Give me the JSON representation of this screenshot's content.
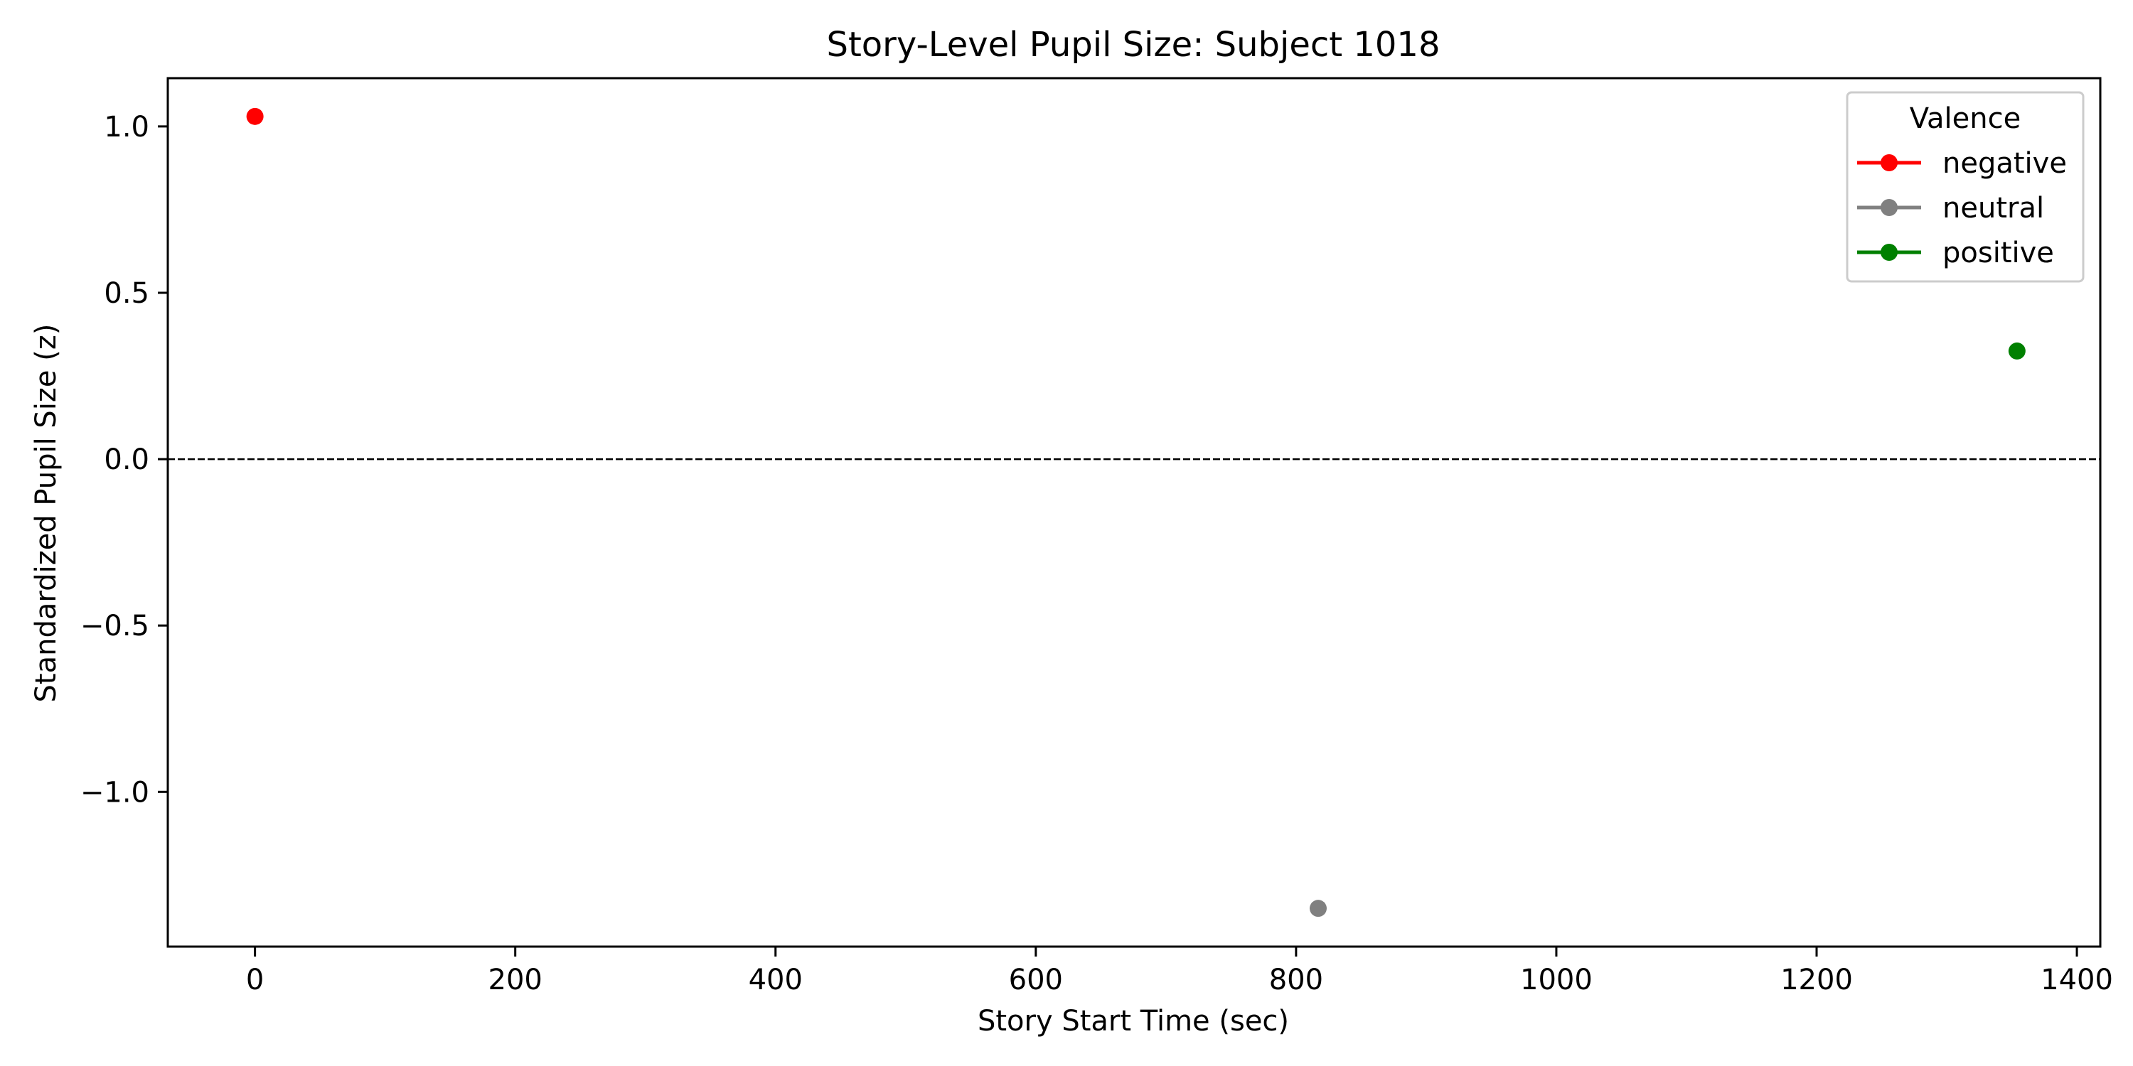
{
  "chart_data": {
    "type": "scatter",
    "title": "Story-Level Pupil Size: Subject 1018",
    "xlabel": "Story Start Time (sec)",
    "ylabel": "Standardized Pupil Size (z)",
    "xlim": [
      -67,
      1418
    ],
    "ylim": [
      -1.465,
      1.145
    ],
    "xticks": [
      0,
      200,
      400,
      600,
      800,
      1000,
      1200,
      1400
    ],
    "yticks": [
      1.0,
      0.5,
      0.0,
      -0.5,
      -1.0
    ],
    "ytick_labels": [
      "1.0",
      "0.5",
      "0.0",
      "−0.5",
      "−1.0"
    ],
    "reference_line": {
      "y": 0.0,
      "style": "dashed",
      "color": "#000000"
    },
    "grid": false,
    "legend": {
      "title": "Valence",
      "placement": "top-right"
    },
    "series": [
      {
        "name": "negative",
        "color": "#ff0000",
        "points": [
          {
            "x": 0,
            "y": 1.03
          }
        ]
      },
      {
        "name": "neutral",
        "color": "#808080",
        "points": [
          {
            "x": 817,
            "y": -1.35
          }
        ]
      },
      {
        "name": "positive",
        "color": "#008000",
        "points": [
          {
            "x": 1354,
            "y": 0.325
          }
        ]
      }
    ]
  }
}
